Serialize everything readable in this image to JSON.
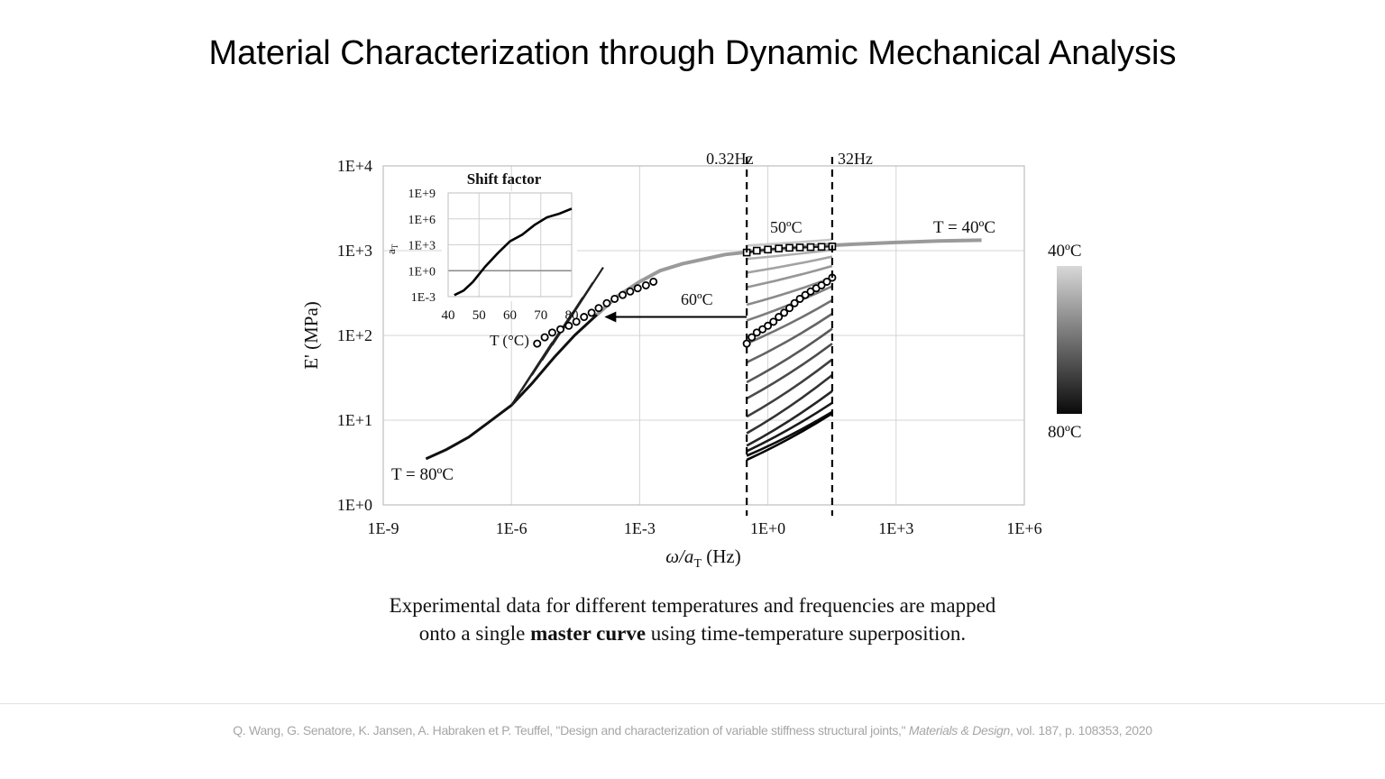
{
  "slide": {
    "title": "Material Characterization through Dynamic Mechanical Analysis",
    "caption": {
      "part1": "Experimental data for different temperatures and frequencies are mapped",
      "part2": "onto a single ",
      "bold": "master curve",
      "part3": " using time-temperature superposition."
    },
    "citation": {
      "prefix": "Q. Wang, G. Senatore, K. Jansen, A. Habraken et P. Teuffel, \"Design and characterization of variable stiffness structural joints,\" ",
      "journal": "Materials & Design",
      "suffix": ", vol. 187, p. 108353, 2020"
    }
  },
  "chart_data": [
    {
      "type": "line",
      "xlabel_main": "ω/a",
      "xlabel_sub": "T",
      "xlabel_unit": " (Hz)",
      "ylabel": "E'  (MPa)",
      "x_scale": "log",
      "y_scale": "log",
      "xlim": [
        1e-09,
        1000000.0
      ],
      "ylim": [
        1,
        10000
      ],
      "x_ticks": [
        {
          "value": 1e-09,
          "label": "1E-9"
        },
        {
          "value": 1e-06,
          "label": "1E-6"
        },
        {
          "value": 0.001,
          "label": "1E-3"
        },
        {
          "value": 1,
          "label": "1E+0"
        },
        {
          "value": 1000.0,
          "label": "1E+3"
        },
        {
          "value": 1000000.0,
          "label": "1E+6"
        }
      ],
      "y_ticks": [
        {
          "value": 1,
          "label": "1E+0"
        },
        {
          "value": 10,
          "label": "1E+1"
        },
        {
          "value": 100,
          "label": "1E+2"
        },
        {
          "value": 1000,
          "label": "1E+3"
        },
        {
          "value": 10000,
          "label": "1E+4"
        }
      ],
      "grid": true,
      "frequency_lines": [
        {
          "label": "0.32Hz",
          "x": 0.32
        },
        {
          "label": "32Hz",
          "x": 32
        }
      ],
      "master_curve": {
        "x": [
          1e-08,
          3e-08,
          1e-07,
          3e-07,
          1e-06,
          3e-06,
          1e-05,
          3e-05,
          0.0001,
          0.0003,
          0.001,
          0.003,
          0.01,
          0.1,
          1,
          10,
          100,
          1000,
          10000.0,
          100000.0
        ],
        "y": [
          3.5,
          4.5,
          6.3,
          9.5,
          15,
          27,
          55,
          100,
          175,
          290,
          430,
          580,
          700,
          900,
          1020,
          1120,
          1190,
          1250,
          1300,
          1330
        ]
      },
      "raw_curves_y_at_032Hz": [
        1150,
        1000,
        800,
        550,
        370,
        230,
        150,
        80,
        48,
        28,
        18,
        11,
        7,
        5,
        4.3,
        3.8,
        3.4
      ],
      "raw_curves_y_at_32Hz": [
        1350,
        1220,
        1020,
        850,
        660,
        480,
        380,
        260,
        180,
        120,
        80,
        52,
        34,
        22,
        16,
        12.5,
        12
      ],
      "marked_curve_50C": {
        "x": [
          0.32,
          0.55,
          1,
          1.8,
          3.2,
          5.6,
          10,
          18,
          32
        ],
        "y": [
          950,
          1000,
          1030,
          1060,
          1080,
          1090,
          1100,
          1110,
          1120
        ]
      },
      "marked_curve_60C_raw": {
        "x": [
          0.32,
          0.42,
          0.55,
          0.75,
          1,
          1.35,
          1.8,
          2.4,
          3.2,
          4.2,
          5.6,
          7.5,
          10,
          13.5,
          18,
          24,
          32
        ],
        "y": [
          80,
          95,
          108,
          118,
          130,
          145,
          165,
          185,
          210,
          240,
          270,
          300,
          330,
          360,
          390,
          430,
          480
        ]
      },
      "marked_curve_60C_shifted": {
        "x": [
          4e-06,
          6e-06,
          9e-06,
          1.4e-05,
          2.2e-05,
          3.3e-05,
          5e-05,
          7.5e-05,
          0.00011,
          0.00017,
          0.00026,
          0.0004,
          0.0006,
          0.0009,
          0.0014,
          0.0021
        ],
        "y": [
          80,
          95,
          108,
          118,
          130,
          145,
          165,
          185,
          210,
          240,
          270,
          300,
          330,
          360,
          390,
          430
        ]
      },
      "shift_arrow": {
        "label": "60ºC",
        "from_x": 0.32,
        "to_x": 0.00015,
        "y": 165
      },
      "annotations": [
        {
          "text": "T = 40ºC"
        },
        {
          "text": "T = 80ºC"
        },
        {
          "text": "50ºC"
        }
      ],
      "colorbar": {
        "top_label": "40ºC",
        "bottom_label": "80ºC",
        "top_color": "#d8d8d8",
        "bottom_color": "#0a0a0a"
      }
    },
    {
      "type": "line",
      "title": "Shift factor",
      "xlabel": "T (°C)",
      "ylabel_main": "a",
      "ylabel_sub": "T",
      "y_scale": "log",
      "xlim": [
        40,
        80
      ],
      "ylim": [
        0.001,
        1000000000.0
      ],
      "x_ticks": [
        40,
        50,
        60,
        70,
        80
      ],
      "y_ticks": [
        {
          "value": 0.001,
          "label": "1E-3"
        },
        {
          "value": 1,
          "label": "1E+0"
        },
        {
          "value": 1000,
          "label": "1E+3"
        },
        {
          "value": 1000000.0,
          "label": "1E+6"
        },
        {
          "value": 1000000000.0,
          "label": "1E+9"
        }
      ],
      "grid": true,
      "x": [
        42,
        45,
        48,
        52,
        56,
        60,
        64,
        68,
        72,
        76,
        80
      ],
      "y": [
        0.0015,
        0.005,
        0.05,
        3,
        100,
        2500,
        15000,
        200000,
        1500000,
        4000000,
        15000000
      ]
    }
  ]
}
